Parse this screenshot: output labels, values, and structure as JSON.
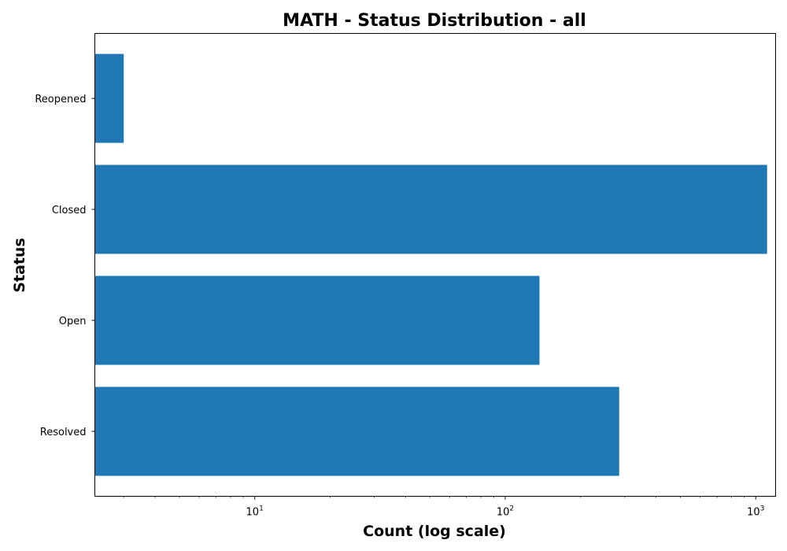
{
  "chart_data": {
    "type": "bar",
    "orientation": "horizontal",
    "title": "MATH - Status Distribution - all",
    "xlabel": "Count (log scale)",
    "ylabel": "Status",
    "x_scale": "log",
    "xlim": [
      2.3,
      1200
    ],
    "x_ticks": [
      {
        "value": 10,
        "base": "10",
        "exp": "1"
      },
      {
        "value": 100,
        "base": "10",
        "exp": "2"
      },
      {
        "value": 1000,
        "base": "10",
        "exp": "3"
      }
    ],
    "categories": [
      "Resolved",
      "Open",
      "Closed",
      "Reopened"
    ],
    "values": [
      285,
      137,
      1110,
      3
    ],
    "bar_color": "#1f77b4",
    "grid": false,
    "legend": false
  }
}
